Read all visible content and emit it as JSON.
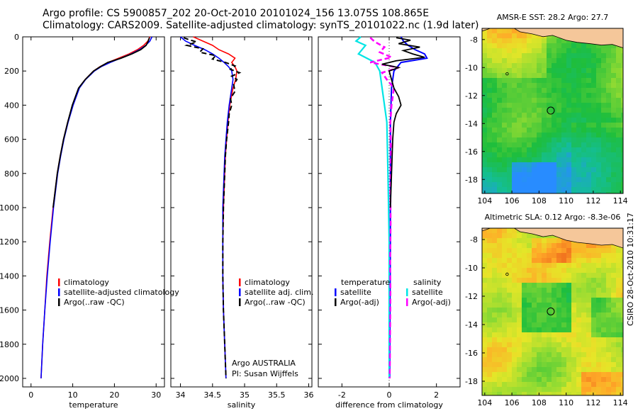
{
  "header": {
    "line1": "Argo profile: CS 5900857_202 20-Oct-2010 20101024_156 13.075S 108.865E",
    "line2": "Climatology: CARS2009. Satellite-adjusted climatology: synTS_20101022.nc (1.9d later)"
  },
  "colors": {
    "climatology": "#ff0000",
    "satellite": "#0000ff",
    "argo": "#000000",
    "satellite_diff_salinity": "#00e5e5",
    "argo_diff_salinity": "#ff00ff",
    "land": "#f5c79a"
  },
  "chart_data": [
    {
      "id": "temperature",
      "type": "line",
      "xlabel": "temperature",
      "xlim": [
        -2,
        32
      ],
      "xticks": [
        0,
        10,
        20,
        30
      ],
      "ylim": [
        2050,
        0
      ],
      "yticks": [
        0,
        200,
        400,
        600,
        800,
        1000,
        1200,
        1400,
        1600,
        1800,
        2000
      ],
      "legend": [
        "climatology",
        "satellite-adjusted climatology",
        "Argo(..raw -QC)"
      ],
      "series": [
        {
          "name": "climatology",
          "depth": [
            0,
            25,
            50,
            75,
            100,
            125,
            150,
            175,
            200,
            250,
            300,
            400,
            500,
            600,
            700,
            800,
            1000,
            1200,
            1400,
            1600,
            1800,
            2000
          ],
          "values": [
            28.5,
            28.0,
            27.0,
            25.5,
            23.5,
            21.0,
            18.5,
            16.5,
            15.0,
            13.0,
            11.5,
            10.0,
            8.8,
            7.8,
            7.0,
            6.3,
            5.3,
            4.5,
            3.8,
            3.3,
            2.8,
            2.4
          ]
        },
        {
          "name": "satellite",
          "depth": [
            0,
            25,
            50,
            75,
            100,
            125,
            150,
            175,
            200,
            250,
            300,
            400,
            500,
            600,
            700,
            800,
            1000,
            1200,
            1400,
            1600,
            1800,
            2000
          ],
          "values": [
            29.0,
            28.5,
            27.5,
            26.0,
            24.0,
            21.5,
            19.0,
            16.8,
            15.2,
            13.1,
            11.6,
            10.1,
            8.9,
            7.9,
            7.1,
            6.4,
            5.4,
            4.6,
            3.9,
            3.3,
            2.8,
            2.4
          ]
        },
        {
          "name": "argo",
          "depth": [
            5,
            25,
            50,
            75,
            100,
            125,
            150,
            175,
            200,
            250,
            300,
            400,
            500,
            600,
            700,
            800,
            1000
          ],
          "values": [
            28.4,
            28.1,
            27.6,
            26.3,
            24.2,
            21.6,
            18.4,
            16.6,
            15.0,
            13.0,
            11.4,
            9.9,
            8.8,
            7.8,
            7.0,
            6.3,
            5.3
          ]
        }
      ]
    },
    {
      "id": "salinity",
      "type": "line",
      "xlabel": "salinity",
      "xlim": [
        33.85,
        36.05
      ],
      "xticks": [
        34,
        34.5,
        35,
        35.5,
        36
      ],
      "ylim": [
        2050,
        0
      ],
      "legend": [
        "climatology",
        "satellite adj. clim.",
        "Argo(..raw -QC)"
      ],
      "annotations": [
        "Argo AUSTRALIA",
        "PI: Susan Wijffels"
      ],
      "series": [
        {
          "name": "climatology",
          "depth": [
            0,
            25,
            50,
            75,
            100,
            125,
            150,
            175,
            200,
            250,
            300,
            400,
            500,
            600,
            700,
            800,
            1000,
            1200,
            1400,
            1600,
            1800,
            2000
          ],
          "values": [
            34.2,
            34.35,
            34.5,
            34.6,
            34.75,
            34.85,
            34.8,
            34.85,
            34.88,
            34.86,
            34.82,
            34.77,
            34.74,
            34.72,
            34.7,
            34.69,
            34.67,
            34.66,
            34.66,
            34.67,
            34.69,
            34.71
          ]
        },
        {
          "name": "satellite",
          "depth": [
            0,
            25,
            50,
            75,
            100,
            125,
            150,
            175,
            200,
            250,
            300,
            400,
            500,
            600,
            700,
            800,
            1000,
            1200,
            1400,
            1600,
            1800,
            2000
          ],
          "values": [
            34.0,
            34.08,
            34.22,
            34.38,
            34.5,
            34.6,
            34.68,
            34.75,
            34.8,
            34.82,
            34.8,
            34.76,
            34.73,
            34.71,
            34.69,
            34.68,
            34.66,
            34.66,
            34.66,
            34.67,
            34.69,
            34.71
          ]
        },
        {
          "name": "argo",
          "depth": [
            5,
            15,
            30,
            50,
            70,
            90,
            110,
            130,
            150,
            170,
            190,
            210,
            230,
            250,
            280,
            320,
            360,
            400,
            450,
            500,
            600,
            700,
            800,
            1000,
            1200,
            1400,
            1600,
            1800,
            2000
          ],
          "values": [
            34.05,
            34.12,
            34.25,
            34.1,
            34.35,
            34.3,
            34.55,
            34.5,
            34.7,
            34.85,
            34.78,
            34.92,
            34.8,
            34.88,
            34.83,
            34.85,
            34.78,
            34.8,
            34.76,
            34.75,
            34.72,
            34.7,
            34.69,
            34.67,
            34.66,
            34.66,
            34.67,
            34.69,
            34.71
          ]
        }
      ]
    },
    {
      "id": "difference",
      "type": "line",
      "xlabel": "difference from climatology",
      "xlim": [
        -3.0,
        3.0
      ],
      "xticks": [
        -2,
        0,
        2
      ],
      "ylim": [
        2050,
        0
      ],
      "legend_left_title": "temperature",
      "legend_right_title": "salinity",
      "legend_left": [
        "satellite",
        "Argo(-adj)"
      ],
      "legend_right": [
        "satellite",
        "Argo(-adj)"
      ],
      "series": [
        {
          "name": "temp-satellite",
          "depth": [
            0,
            25,
            50,
            75,
            100,
            125,
            150,
            200,
            300,
            500,
            800,
            1200,
            2000
          ],
          "values": [
            0.5,
            0.6,
            0.8,
            1.1,
            1.5,
            1.6,
            0.5,
            0.2,
            0.1,
            0.05,
            0.05,
            0.05,
            0.02
          ]
        },
        {
          "name": "temp-argo",
          "depth": [
            5,
            20,
            40,
            60,
            80,
            100,
            120,
            140,
            160,
            180,
            200,
            250,
            300,
            350,
            400,
            450,
            500,
            600,
            800,
            1000
          ],
          "values": [
            0.3,
            0.9,
            0.4,
            1.3,
            0.6,
            1.0,
            1.5,
            0.3,
            -0.3,
            0.4,
            0.0,
            0.1,
            0.2,
            0.4,
            0.5,
            0.3,
            0.2,
            0.15,
            0.1,
            0.05
          ]
        },
        {
          "name": "sal-satellite",
          "depth": [
            0,
            25,
            50,
            100,
            150,
            200,
            300,
            500,
            800,
            1200,
            2000
          ],
          "values": [
            -1.2,
            -1.4,
            -1.0,
            -1.3,
            -0.6,
            -0.4,
            -0.3,
            -0.1,
            -0.05,
            0.0,
            0.0
          ]
        },
        {
          "name": "sal-argo",
          "depth": [
            5,
            30,
            60,
            90,
            120,
            150,
            180,
            210,
            250,
            300,
            400,
            500,
            700,
            900,
            1100,
            1300,
            1500,
            1700,
            1900,
            2000
          ],
          "values": [
            -0.8,
            -0.6,
            -0.2,
            -0.4,
            0.1,
            -0.8,
            0.4,
            -0.3,
            -0.1,
            0.2,
            0.1,
            0.05,
            0.08,
            0.05,
            0.06,
            0.04,
            0.05,
            0.04,
            0.03,
            0.02
          ]
        }
      ]
    },
    {
      "id": "sst-map",
      "type": "heatmap",
      "title": "AMSR-E SST: 28.2 Argo: 27.7",
      "xlim": [
        103.8,
        114.2
      ],
      "ylim": [
        -19,
        -7.2
      ],
      "xticks": [
        104,
        106,
        108,
        110,
        112,
        114
      ],
      "yticks": [
        -8,
        -10,
        -12,
        -14,
        -16,
        -18
      ],
      "marker": {
        "lon": 108.865,
        "lat": -13.075
      }
    },
    {
      "id": "sla-map",
      "type": "heatmap",
      "title": "Altimetric SLA: 0.12 Argo: -8.3e-06",
      "xlim": [
        103.8,
        114.2
      ],
      "ylim": [
        -19,
        -7.2
      ],
      "xticks": [
        104,
        106,
        108,
        110,
        112,
        114
      ],
      "yticks": [
        -8,
        -10,
        -12,
        -14,
        -16,
        -18
      ],
      "marker": {
        "lon": 108.865,
        "lat": -13.075
      }
    }
  ],
  "footer": {
    "stamp": "CSIRO 28-Oct-2010 10:31:17"
  }
}
